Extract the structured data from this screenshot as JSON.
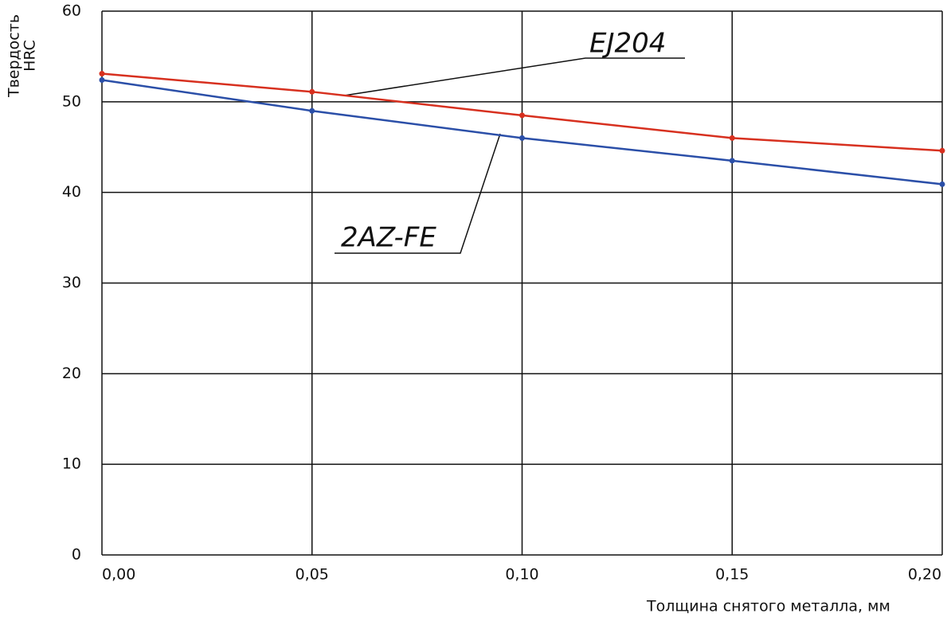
{
  "chart_data": {
    "type": "line",
    "y_label": [
      "Твердость",
      "HRC"
    ],
    "x_label": "Толщина снятого металла, мм",
    "x": [
      0,
      0.05,
      0.1,
      0.15,
      0.2
    ],
    "xlim": [
      0,
      0.2
    ],
    "xticks": [
      {
        "value": 0,
        "label": "0,00"
      },
      {
        "value": 0.05,
        "label": "0,05"
      },
      {
        "value": 0.1,
        "label": "0,10"
      },
      {
        "value": 0.15,
        "label": "0,15"
      },
      {
        "value": 0.2,
        "label": "0,20"
      }
    ],
    "ylim": [
      0,
      60
    ],
    "yticks": [
      0,
      10,
      20,
      30,
      40,
      50,
      60
    ],
    "grid": true,
    "series": [
      {
        "name": "EJ204",
        "color": "#d7301f",
        "values": [
          53.1,
          51.1,
          48.5,
          46.0,
          44.6
        ]
      },
      {
        "name": "2AZ-FE",
        "color": "#2b4fa8",
        "values": [
          52.4,
          49.0,
          46.0,
          43.5,
          40.9
        ]
      }
    ]
  }
}
